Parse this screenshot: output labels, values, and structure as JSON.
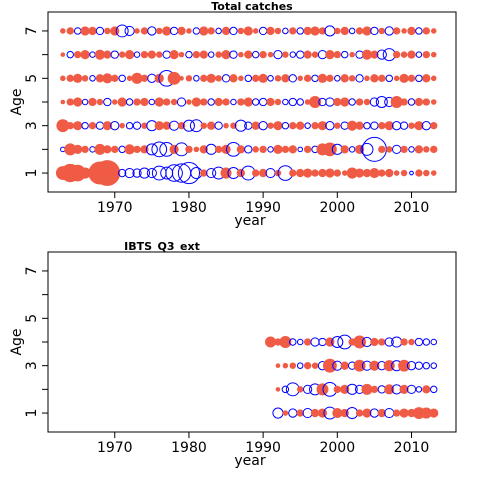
{
  "chart_data": [
    {
      "type": "bubble",
      "title": "Total catches",
      "xlabel": "year",
      "ylabel": "Age",
      "xlim": [
        1961,
        2016
      ],
      "xticks": [
        1970,
        1980,
        1990,
        2000,
        2010
      ],
      "ylim": [
        0.2,
        7.8
      ],
      "yticks": [
        1,
        3,
        5,
        7
      ],
      "yminorticks": [
        2,
        4,
        6
      ],
      "positive_color": "#ef5b45",
      "negative_color": "#0000ff",
      "x": [
        1963,
        1964,
        1965,
        1966,
        1967,
        1968,
        1969,
        1970,
        1971,
        1972,
        1973,
        1974,
        1975,
        1976,
        1977,
        1978,
        1979,
        1980,
        1981,
        1982,
        1983,
        1984,
        1985,
        1986,
        1987,
        1988,
        1989,
        1990,
        1991,
        1992,
        1993,
        1994,
        1995,
        1996,
        1997,
        1998,
        1999,
        2000,
        2001,
        2002,
        2003,
        2004,
        2005,
        2006,
        2007,
        2008,
        2009,
        2010,
        2011,
        2012,
        2013
      ],
      "ages": [
        1,
        2,
        3,
        4,
        5,
        6,
        7
      ],
      "values": [
        [
          1.5,
          2.0,
          1.8,
          1.2,
          1.0,
          2.5,
          2.8,
          1.0,
          -0.8,
          -1.0,
          -0.9,
          -1.1,
          -1.0,
          -1.5,
          -1.3,
          -1.8,
          -2.0,
          -2.3,
          -1.2,
          0.8,
          -1.0,
          -1.3,
          1.2,
          -1.2,
          0.9,
          -1.5,
          0.8,
          0.9,
          -1.0,
          0.7,
          -1.6,
          0.8,
          0.9,
          1.0,
          0.8,
          0.9,
          1.0,
          0.8,
          0.6,
          1.2,
          1.0,
          0.9,
          1.1,
          0.8,
          0.9,
          0.6,
          0.7,
          -0.4,
          0.8,
          0.7,
          0.6
        ],
        [
          -0.5,
          1.3,
          1.0,
          0.8,
          -0.6,
          1.2,
          0.9,
          0.8,
          -0.7,
          1.1,
          0.8,
          0.9,
          -1.2,
          -1.6,
          -1.5,
          1.0,
          -1.4,
          0.8,
          0.6,
          0.9,
          -1.1,
          0.8,
          1.0,
          -1.5,
          0.9,
          -0.8,
          0.7,
          0.8,
          -0.6,
          1.0,
          0.8,
          0.9,
          -0.5,
          0.8,
          -0.7,
          1.3,
          1.5,
          -1.1,
          0.9,
          -0.6,
          1.0,
          -1.3,
          -2.6,
          0.8,
          0.7,
          -0.9,
          0.8,
          -0.6,
          0.9,
          0.7,
          0.8
        ],
        [
          1.4,
          0.8,
          1.0,
          -0.7,
          0.8,
          -0.8,
          1.0,
          -0.9,
          0.6,
          -0.7,
          -0.8,
          0.7,
          -1.1,
          1.0,
          0.9,
          -1.0,
          0.8,
          -1.2,
          -1.3,
          0.7,
          0.9,
          -0.8,
          0.6,
          0.7,
          -1.2,
          -0.8,
          0.9,
          -0.9,
          0.7,
          1.0,
          -0.7,
          0.8,
          0.9,
          -0.6,
          0.8,
          1.0,
          -0.9,
          0.7,
          -0.8,
          1.1,
          0.9,
          -0.7,
          -0.8,
          0.8,
          1.0,
          -0.9,
          -0.8,
          0.7,
          1.0,
          -0.9,
          0.8
        ],
        [
          0.5,
          0.8,
          1.0,
          -0.6,
          0.9,
          0.7,
          -0.8,
          0.6,
          1.0,
          -0.7,
          0.8,
          0.9,
          -0.6,
          1.0,
          0.8,
          0.7,
          -0.9,
          0.6,
          1.0,
          0.8,
          -0.7,
          0.9,
          0.8,
          -0.6,
          0.8,
          1.0,
          -0.7,
          -0.8,
          0.9,
          0.7,
          -0.6,
          -0.8,
          -0.7,
          0.6,
          1.3,
          -0.8,
          -0.9,
          0.9,
          1.0,
          -0.7,
          0.8,
          0.7,
          -0.9,
          -1.2,
          -1.0,
          1.3,
          0.8,
          -0.7,
          0.9,
          0.8,
          0.6
        ],
        [
          0.6,
          0.8,
          1.0,
          0.7,
          -0.6,
          0.9,
          1.1,
          0.8,
          -0.7,
          0.6,
          1.2,
          0.8,
          -0.9,
          1.0,
          -1.7,
          1.4,
          0.5,
          0.7,
          -0.6,
          0.8,
          1.0,
          0.7,
          -0.8,
          0.9,
          0.6,
          -0.7,
          0.8,
          1.0,
          -0.6,
          0.7,
          0.9,
          -0.8,
          0.6,
          0.8,
          -0.7,
          1.0,
          0.8,
          -0.6,
          0.9,
          0.7,
          -0.8,
          0.6,
          0.9,
          0.8,
          -0.7,
          0.6,
          1.0,
          0.8,
          -0.7,
          0.9,
          0.6
        ],
        [
          0.5,
          -0.7,
          0.8,
          1.0,
          -0.6,
          1.1,
          0.9,
          -0.8,
          0.7,
          1.0,
          -0.6,
          0.8,
          0.9,
          0.7,
          -0.8,
          1.0,
          0.6,
          -0.7,
          0.8,
          0.9,
          -0.6,
          0.7,
          1.0,
          -0.8,
          0.6,
          0.9,
          -0.7,
          0.8,
          0.6,
          -0.9,
          0.7,
          -0.6,
          -0.8,
          0.9,
          0.7,
          -0.9,
          1.0,
          0.8,
          -0.7,
          0.6,
          -0.8,
          1.1,
          0.9,
          -1.0,
          -1.3,
          0.8,
          0.7,
          0.9,
          -0.6,
          0.8,
          0.6
        ],
        [
          0.6,
          0.8,
          -0.7,
          1.0,
          0.9,
          -0.8,
          0.7,
          1.0,
          -1.3,
          -1.0,
          0.6,
          0.8,
          -0.9,
          0.7,
          1.0,
          -0.8,
          0.9,
          0.6,
          -0.7,
          1.0,
          0.8,
          -0.6,
          0.9,
          -0.8,
          0.7,
          1.0,
          0.6,
          -0.8,
          0.9,
          0.7,
          -0.6,
          0.8,
          -0.7,
          0.9,
          1.0,
          0.8,
          -1.1,
          0.7,
          0.9,
          -0.6,
          0.8,
          1.0,
          -0.8,
          0.7,
          -0.9,
          0.8,
          0.6,
          0.9,
          -0.7,
          0.8,
          0.6
        ]
      ]
    },
    {
      "type": "bubble",
      "title": "IBTS_Q3_ext",
      "xlabel": "year",
      "ylabel": "Age",
      "xlim": [
        1961,
        2016
      ],
      "xticks": [
        1970,
        1980,
        1990,
        2000,
        2010
      ],
      "ylim": [
        0.2,
        7.8
      ],
      "yticks": [
        1,
        3,
        5,
        7
      ],
      "yminorticks": [
        2,
        4,
        6
      ],
      "positive_color": "#ef5b45",
      "negative_color": "#0000ff",
      "x": [
        1991,
        1992,
        1993,
        1994,
        1995,
        1996,
        1997,
        1998,
        1999,
        2000,
        2001,
        2002,
        2003,
        2004,
        2005,
        2006,
        2007,
        2008,
        2009,
        2010,
        2011,
        2012,
        2013
      ],
      "ages": [
        1,
        2,
        3,
        4
      ],
      "values": [
        [
          null,
          -1.1,
          0.6,
          -0.9,
          0.8,
          -1.0,
          0.9,
          1.0,
          -1.3,
          1.1,
          0.9,
          -1.2,
          0.8,
          1.0,
          -0.9,
          0.9,
          -1.0,
          0.8,
          1.0,
          0.9,
          1.3,
          1.2,
          1.0
        ],
        [
          null,
          0.5,
          -0.7,
          -1.4,
          0.7,
          -0.9,
          -1.2,
          1.3,
          -1.5,
          0.8,
          1.0,
          -1.1,
          -0.9,
          1.2,
          0.8,
          -0.8,
          1.1,
          -1.0,
          1.0,
          -0.9,
          -0.6,
          0.9,
          -0.7
        ],
        [
          null,
          0.5,
          0.6,
          0.7,
          -0.6,
          0.8,
          0.7,
          -0.9,
          1.5,
          -1.0,
          0.9,
          -0.8,
          1.3,
          -1.0,
          1.1,
          -0.9,
          1.2,
          -1.1,
          1.3,
          -0.9,
          -0.8,
          -0.7,
          -0.6
        ],
        [
          1.2,
          0.8,
          1.3,
          -0.7,
          -0.6,
          0.8,
          -0.9,
          -0.8,
          1.0,
          -1.2,
          -1.5,
          0.8,
          1.4,
          -1.0,
          0.9,
          0.8,
          -0.9,
          -1.1,
          0.8,
          0.7,
          -0.8,
          -0.7,
          -0.6
        ]
      ]
    }
  ]
}
